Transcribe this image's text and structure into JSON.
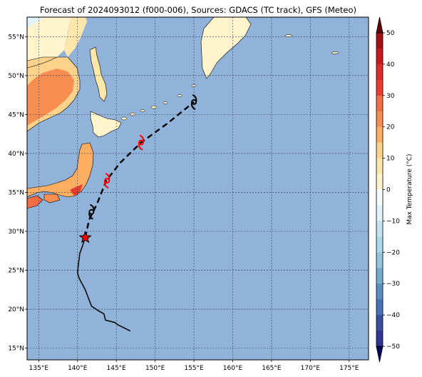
{
  "title": "Forecast of 2024093012 (f000-006), Sources: GDACS (TC track), GFS (Meteo)",
  "chart_data": {
    "type": "map",
    "extent": {
      "lon": [
        133.5,
        177.5
      ],
      "lat": [
        13.5,
        57.5
      ]
    },
    "grid": true,
    "lon_ticks": [
      {
        "value": 135,
        "label": "135°E"
      },
      {
        "value": 140,
        "label": "140°E"
      },
      {
        "value": 145,
        "label": "145°E"
      },
      {
        "value": 150,
        "label": "150°E"
      },
      {
        "value": 155,
        "label": "155°E"
      },
      {
        "value": 160,
        "label": "160°E"
      },
      {
        "value": 165,
        "label": "165°E"
      },
      {
        "value": 170,
        "label": "170°E"
      },
      {
        "value": 175,
        "label": "175°E"
      }
    ],
    "lat_ticks": [
      {
        "value": 15,
        "label": "15°N"
      },
      {
        "value": 20,
        "label": "20°N"
      },
      {
        "value": 25,
        "label": "25°N"
      },
      {
        "value": 30,
        "label": "30°N"
      },
      {
        "value": 35,
        "label": "35°N"
      },
      {
        "value": 40,
        "label": "40°N"
      },
      {
        "value": 45,
        "label": "45°N"
      },
      {
        "value": 50,
        "label": "50°N"
      },
      {
        "value": 55,
        "label": "55°N"
      }
    ],
    "ocean_color": "#92b3d9",
    "observed_track": [
      [
        146.8,
        17.2
      ],
      [
        145.2,
        18.0
      ],
      [
        144.8,
        18.3
      ],
      [
        143.6,
        18.6
      ],
      [
        143.4,
        19.4
      ],
      [
        142.7,
        19.8
      ],
      [
        141.8,
        20.4
      ],
      [
        141.3,
        21.7
      ],
      [
        141.0,
        22.5
      ],
      [
        140.2,
        24.0
      ],
      [
        140.0,
        24.7
      ],
      [
        140.1,
        25.6
      ],
      [
        140.3,
        27.2
      ],
      [
        140.6,
        28.0
      ],
      [
        141.0,
        29.2
      ]
    ],
    "forecast_track": [
      [
        141.0,
        29.2
      ],
      [
        141.5,
        31.5
      ],
      [
        142.5,
        33.5
      ],
      [
        143.7,
        36.5
      ],
      [
        145.5,
        38.8
      ],
      [
        148.2,
        41.4
      ],
      [
        151.5,
        43.8
      ],
      [
        155.0,
        46.6
      ]
    ],
    "current_position": [
      141.0,
      29.2
    ],
    "storm_symbols": [
      {
        "lon": 141.8,
        "lat": 32.5,
        "color": "#000000"
      },
      {
        "lon": 143.8,
        "lat": 36.5,
        "color": "#ff0000"
      },
      {
        "lon": 148.2,
        "lat": 41.4,
        "color": "#ff0000"
      },
      {
        "lon": 155.0,
        "lat": 46.6,
        "color": "#000000"
      }
    ],
    "colorbar": {
      "label": "Max Temperature (°C)",
      "min": -50,
      "max": 50,
      "ticks": [
        {
          "value": 50,
          "label": "50"
        },
        {
          "value": 40,
          "label": "40"
        },
        {
          "value": 30,
          "label": "30"
        },
        {
          "value": 20,
          "label": "20"
        },
        {
          "value": 10,
          "label": "10"
        },
        {
          "value": 0,
          "label": "0"
        },
        {
          "value": -10,
          "label": "−10"
        },
        {
          "value": -20,
          "label": "−20"
        },
        {
          "value": -30,
          "label": "−30"
        },
        {
          "value": -40,
          "label": "−40"
        },
        {
          "value": -50,
          "label": "−50"
        }
      ],
      "bands": [
        {
          "from": 45,
          "to": 50,
          "color": "#a50f15"
        },
        {
          "from": 40,
          "to": 45,
          "color": "#cb181d"
        },
        {
          "from": 35,
          "to": 40,
          "color": "#de2d26"
        },
        {
          "from": 30,
          "to": 35,
          "color": "#ef3b2c"
        },
        {
          "from": 25,
          "to": 30,
          "color": "#f46d43"
        },
        {
          "from": 20,
          "to": 25,
          "color": "#f88d52"
        },
        {
          "from": 15,
          "to": 20,
          "color": "#fdae61"
        },
        {
          "from": 10,
          "to": 15,
          "color": "#fdd28a"
        },
        {
          "from": 5,
          "to": 10,
          "color": "#fee7a8"
        },
        {
          "from": 0,
          "to": 5,
          "color": "#fff4cc"
        },
        {
          "from": -5,
          "to": 0,
          "color": "#f4fbfd"
        },
        {
          "from": -10,
          "to": -5,
          "color": "#e0f3f8"
        },
        {
          "from": -15,
          "to": -10,
          "color": "#c5e3ee"
        },
        {
          "from": -20,
          "to": -15,
          "color": "#abd9e9"
        },
        {
          "from": -25,
          "to": -20,
          "color": "#92c5de"
        },
        {
          "from": -30,
          "to": -25,
          "color": "#74add1"
        },
        {
          "from": -35,
          "to": -30,
          "color": "#5b8fc4"
        },
        {
          "from": -40,
          "to": -35,
          "color": "#4575b4"
        },
        {
          "from": -45,
          "to": -40,
          "color": "#3a4fa0"
        },
        {
          "from": -50,
          "to": -45,
          "color": "#313695"
        }
      ],
      "over_color": "#67000d",
      "under_color": "#08085e"
    }
  }
}
